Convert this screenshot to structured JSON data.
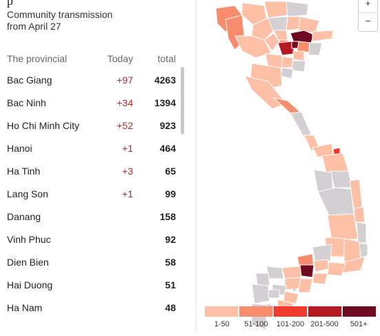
{
  "sidebar": {
    "subtitle_line1": "Community transmission",
    "subtitle_line2": "from April 27",
    "header": {
      "province": "The provincial",
      "today": "Today",
      "total": "total"
    },
    "rows": [
      {
        "province": "Bac Giang",
        "today": "+97",
        "total": "4263"
      },
      {
        "province": "Bac Ninh",
        "today": "+34",
        "total": "1394"
      },
      {
        "province": "Ho Chi Minh City",
        "today": "+52",
        "total": "923"
      },
      {
        "province": "Hanoi",
        "today": "+1",
        "total": "464"
      },
      {
        "province": "Ha Tinh",
        "today": "+3",
        "total": "65"
      },
      {
        "province": "Lang Son",
        "today": "+1",
        "total": "99"
      },
      {
        "province": "Danang",
        "today": "",
        "total": "158"
      },
      {
        "province": "Vinh Phuc",
        "today": "",
        "total": "92"
      },
      {
        "province": "Dien Bien",
        "today": "",
        "total": "58"
      },
      {
        "province": "Hai Duong",
        "today": "",
        "total": "51"
      },
      {
        "province": "Ha Nam",
        "today": "",
        "total": "48"
      }
    ]
  },
  "map": {
    "zoom_in": "+",
    "zoom_out": "−",
    "no_data_color": "#d3cfd3",
    "border_color": "#ffffff"
  },
  "legend": {
    "items": [
      {
        "label": "1-50",
        "color": "#fdbfa6"
      },
      {
        "label": "51-100",
        "color": "#f98c6c"
      },
      {
        "label": "101-200",
        "color": "#ee3b2d"
      },
      {
        "label": "201-500",
        "color": "#b51a22"
      },
      {
        "label": "501+",
        "color": "#6e0a22"
      }
    ]
  }
}
